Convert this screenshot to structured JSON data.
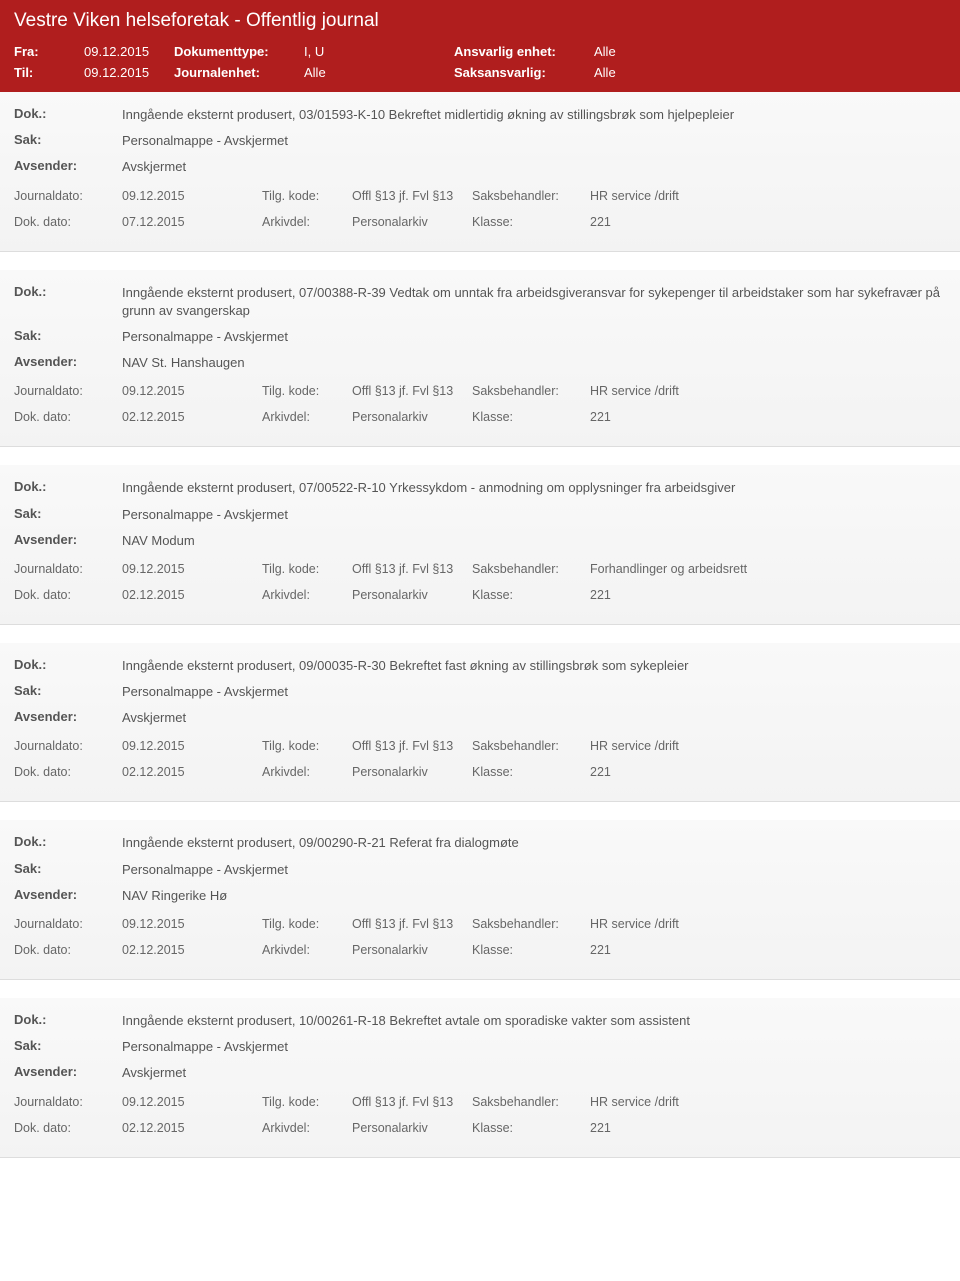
{
  "header": {
    "title": "Vestre Viken helseforetak - Offentlig journal",
    "fra_label": "Fra:",
    "fra_value": "09.12.2015",
    "til_label": "Til:",
    "til_value": "09.12.2015",
    "doktype_label": "Dokumenttype:",
    "doktype_value": "I, U",
    "journalenhet_label": "Journalenhet:",
    "journalenhet_value": "Alle",
    "ansvarlig_label": "Ansvarlig enhet:",
    "ansvarlig_value": "Alle",
    "saksansvarlig_label": "Saksansvarlig:",
    "saksansvarlig_value": "Alle"
  },
  "labels": {
    "dok": "Dok.:",
    "sak": "Sak:",
    "avsender": "Avsender:",
    "journaldato": "Journaldato:",
    "dokdato": "Dok. dato:",
    "tilgkode": "Tilg. kode:",
    "arkivdel": "Arkivdel:",
    "saksbehandler": "Saksbehandler:",
    "klasse": "Klasse:"
  },
  "entries": [
    {
      "dok": "Inngående eksternt produsert, 03/01593-K-10 Bekreftet midlertidig økning av stillingsbrøk som hjelpepleier",
      "sak": "Personalmappe - Avskjermet",
      "avsender": "Avskjermet",
      "journaldato": "09.12.2015",
      "dokdato": "07.12.2015",
      "tilgkode": "Offl §13 jf. Fvl §13",
      "arkivdel": "Personalarkiv",
      "saksbehandler": "HR service /drift",
      "klasse": "221"
    },
    {
      "dok": "Inngående eksternt produsert, 07/00388-R-39 Vedtak om unntak fra arbeidsgiveransvar for sykepenger til arbeidstaker som har sykefravær på grunn av svangerskap",
      "sak": "Personalmappe - Avskjermet",
      "avsender": "NAV St. Hanshaugen",
      "journaldato": "09.12.2015",
      "dokdato": "02.12.2015",
      "tilgkode": "Offl §13 jf. Fvl §13",
      "arkivdel": "Personalarkiv",
      "saksbehandler": "HR service /drift",
      "klasse": "221"
    },
    {
      "dok": "Inngående eksternt produsert, 07/00522-R-10 Yrkessykdom - anmodning om opplysninger fra arbeidsgiver",
      "sak": "Personalmappe - Avskjermet",
      "avsender": "NAV Modum",
      "journaldato": "09.12.2015",
      "dokdato": "02.12.2015",
      "tilgkode": "Offl §13 jf. Fvl §13",
      "arkivdel": "Personalarkiv",
      "saksbehandler": "Forhandlinger og arbeidsrett",
      "klasse": "221"
    },
    {
      "dok": "Inngående eksternt produsert, 09/00035-R-30 Bekreftet fast økning av stillingsbrøk som sykepleier",
      "sak": "Personalmappe - Avskjermet",
      "avsender": "Avskjermet",
      "journaldato": "09.12.2015",
      "dokdato": "02.12.2015",
      "tilgkode": "Offl §13 jf. Fvl §13",
      "arkivdel": "Personalarkiv",
      "saksbehandler": "HR service /drift",
      "klasse": "221"
    },
    {
      "dok": "Inngående eksternt produsert, 09/00290-R-21 Referat fra dialogmøte",
      "sak": "Personalmappe - Avskjermet",
      "avsender": "NAV Ringerike  Hø",
      "journaldato": "09.12.2015",
      "dokdato": "02.12.2015",
      "tilgkode": "Offl §13 jf. Fvl §13",
      "arkivdel": "Personalarkiv",
      "saksbehandler": "HR service /drift",
      "klasse": "221"
    },
    {
      "dok": "Inngående eksternt produsert, 10/00261-R-18 Bekreftet avtale om sporadiske vakter som assistent",
      "sak": "Personalmappe - Avskjermet",
      "avsender": "Avskjermet",
      "journaldato": "09.12.2015",
      "dokdato": "02.12.2015",
      "tilgkode": "Offl §13 jf. Fvl §13",
      "arkivdel": "Personalarkiv",
      "saksbehandler": "HR service /drift",
      "klasse": "221"
    }
  ]
}
